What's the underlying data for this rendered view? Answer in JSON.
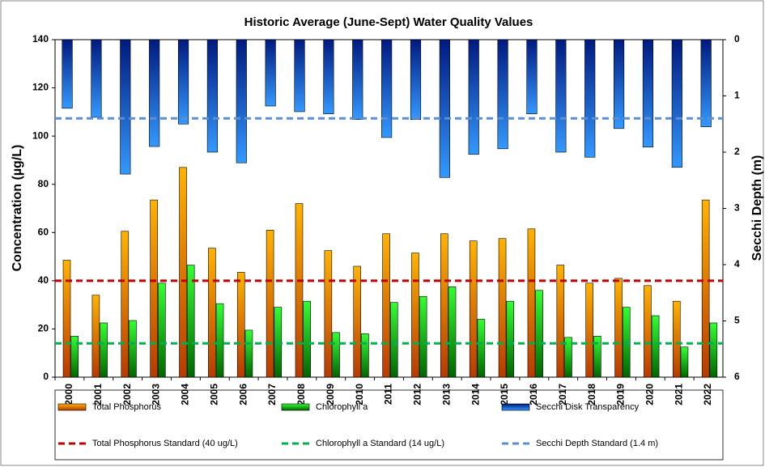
{
  "chart_data": {
    "type": "bar",
    "title": "Historic Average (June-Sept) Water Quality Values",
    "y_label": "Concentration (µg/L)",
    "y2_label": "Secchi Depth (m)",
    "categories": [
      "2000",
      "2001",
      "2002",
      "2003",
      "2004",
      "2005",
      "2006",
      "2007",
      "2008",
      "2009",
      "2010",
      "2011",
      "2012",
      "2013",
      "2014",
      "2015",
      "2016",
      "2017",
      "2018",
      "2019",
      "2020",
      "2021",
      "2022"
    ],
    "series": [
      {
        "name": "Total Phosphorus",
        "color": "#ffb300",
        "color2": "#b83a00",
        "values": [
          48.5,
          34,
          60.5,
          73.5,
          87,
          53.5,
          43.5,
          61,
          72,
          52.5,
          46,
          59.5,
          51.5,
          59.5,
          56.5,
          57.5,
          61.5,
          46.5,
          39,
          41,
          38,
          31.5,
          73.5
        ]
      },
      {
        "name": "Chlorophyll a",
        "color": "#33ff33",
        "color2": "#006600",
        "values": [
          17,
          22.5,
          23.5,
          39,
          46.5,
          30.5,
          19.5,
          29,
          31.5,
          18.5,
          18,
          31,
          33.5,
          37.5,
          24,
          31.5,
          36,
          16.5,
          17,
          29,
          25.5,
          12.5,
          22.5
        ]
      },
      {
        "name": "Secchi Disk Transparency",
        "color": "#001a80",
        "color2": "#3399ff",
        "axis": "y2",
        "values": [
          1.22,
          1.38,
          2.39,
          1.9,
          1.5,
          2.0,
          2.19,
          1.18,
          1.28,
          1.32,
          1.42,
          1.74,
          1.42,
          2.45,
          2.04,
          1.94,
          1.32,
          2.0,
          2.09,
          1.58,
          1.91,
          2.27,
          1.55
        ]
      }
    ],
    "standards": [
      {
        "name": "Total Phosphorus Standard (40 ug/L)",
        "color": "#c00000",
        "value": 40
      },
      {
        "name": "Chlorophyll a Standard (14 ug/L)",
        "color": "#00b050",
        "value": 14
      },
      {
        "name": "Secchi Depth Standard (1.4 m)",
        "color": "#5b8fd0",
        "value": 1.4,
        "axis": "y2"
      }
    ],
    "ylim": [
      0,
      140
    ],
    "yticks": [
      0,
      20,
      40,
      60,
      80,
      100,
      120,
      140
    ],
    "y2lim": [
      6,
      0
    ],
    "y2ticks": [
      0,
      1,
      2,
      3,
      4,
      5,
      6
    ],
    "grid": false
  }
}
